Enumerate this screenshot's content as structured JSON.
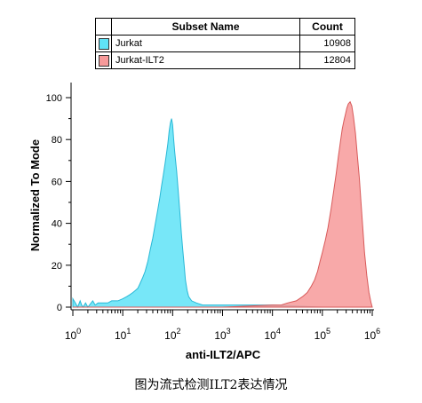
{
  "legend": {
    "header": {
      "name": "Subset Name",
      "count": "Count"
    },
    "rows": [
      {
        "name": "Jurkat",
        "count": "10908",
        "color": "#5FE3F7"
      },
      {
        "name": "Jurkat-ILT2",
        "count": "12804",
        "color": "#F79A9A"
      }
    ]
  },
  "caption": "图为流式检测ILT2表达情况",
  "chart_data": {
    "type": "area",
    "xlabel": "anti-ILT2/APC",
    "ylabel": "Normalized To Mode",
    "x_scale": "log",
    "xlim": [
      1,
      1000000
    ],
    "ylim": [
      0,
      100
    ],
    "x_ticks": [
      {
        "base": "10",
        "exp": "0"
      },
      {
        "base": "10",
        "exp": "1"
      },
      {
        "base": "10",
        "exp": "2"
      },
      {
        "base": "10",
        "exp": "3"
      },
      {
        "base": "10",
        "exp": "4"
      },
      {
        "base": "10",
        "exp": "5"
      },
      {
        "base": "10",
        "exp": "6"
      }
    ],
    "y_ticks": [
      "0",
      "20",
      "40",
      "60",
      "80",
      "100"
    ],
    "series": [
      {
        "name": "Jurkat",
        "color": "#5FE3F7",
        "edge": "#29B8D6",
        "points": [
          [
            1,
            4
          ],
          [
            1.12,
            2
          ],
          [
            1.25,
            0
          ],
          [
            1.4,
            3
          ],
          [
            1.5,
            1
          ],
          [
            1.6,
            0
          ],
          [
            1.8,
            2
          ],
          [
            2,
            0
          ],
          [
            2.5,
            3
          ],
          [
            2.8,
            1
          ],
          [
            3.2,
            2
          ],
          [
            4,
            2
          ],
          [
            5,
            2
          ],
          [
            6,
            3
          ],
          [
            7,
            3
          ],
          [
            8,
            3
          ],
          [
            10,
            4
          ],
          [
            12,
            5
          ],
          [
            14,
            6
          ],
          [
            16,
            7
          ],
          [
            18,
            8
          ],
          [
            20,
            9
          ],
          [
            22,
            11
          ],
          [
            25,
            14
          ],
          [
            28,
            17
          ],
          [
            32,
            22
          ],
          [
            36,
            28
          ],
          [
            40,
            33
          ],
          [
            45,
            40
          ],
          [
            50,
            46
          ],
          [
            55,
            52
          ],
          [
            60,
            58
          ],
          [
            65,
            63
          ],
          [
            70,
            68
          ],
          [
            75,
            73
          ],
          [
            80,
            78
          ],
          [
            85,
            84
          ],
          [
            90,
            88
          ],
          [
            95,
            90
          ],
          [
            100,
            87
          ],
          [
            105,
            80
          ],
          [
            110,
            74
          ],
          [
            120,
            65
          ],
          [
            130,
            55
          ],
          [
            140,
            45
          ],
          [
            150,
            35
          ],
          [
            160,
            27
          ],
          [
            170,
            20
          ],
          [
            180,
            13
          ],
          [
            195,
            8
          ],
          [
            210,
            5
          ],
          [
            240,
            3
          ],
          [
            300,
            2
          ],
          [
            400,
            1
          ],
          [
            600,
            1
          ],
          [
            1000,
            1
          ],
          [
            3000,
            1
          ],
          [
            10000,
            1
          ],
          [
            100000,
            0
          ],
          [
            1000000,
            0
          ]
        ]
      },
      {
        "name": "Jurkat-ILT2",
        "color": "#F79A9A",
        "edge": "#D85A5A",
        "points": [
          [
            1,
            0
          ],
          [
            100,
            0
          ],
          [
            1000,
            0
          ],
          [
            10000,
            1
          ],
          [
            15000,
            1
          ],
          [
            20000,
            2
          ],
          [
            30000,
            3
          ],
          [
            40000,
            5
          ],
          [
            50000,
            7
          ],
          [
            60000,
            10
          ],
          [
            70000,
            13
          ],
          [
            80000,
            17
          ],
          [
            90000,
            22
          ],
          [
            100000,
            26
          ],
          [
            115000,
            32
          ],
          [
            130000,
            38
          ],
          [
            150000,
            47
          ],
          [
            170000,
            56
          ],
          [
            190000,
            64
          ],
          [
            210000,
            72
          ],
          [
            230000,
            79
          ],
          [
            250000,
            85
          ],
          [
            270000,
            89
          ],
          [
            290000,
            92
          ],
          [
            310000,
            95
          ],
          [
            330000,
            97
          ],
          [
            360000,
            98
          ],
          [
            390000,
            96
          ],
          [
            420000,
            91
          ],
          [
            460000,
            83
          ],
          [
            500000,
            73
          ],
          [
            550000,
            62
          ],
          [
            600000,
            49
          ],
          [
            650000,
            37
          ],
          [
            700000,
            26
          ],
          [
            780000,
            15
          ],
          [
            860000,
            7
          ],
          [
            950000,
            2
          ],
          [
            1000000,
            0
          ]
        ]
      }
    ]
  }
}
